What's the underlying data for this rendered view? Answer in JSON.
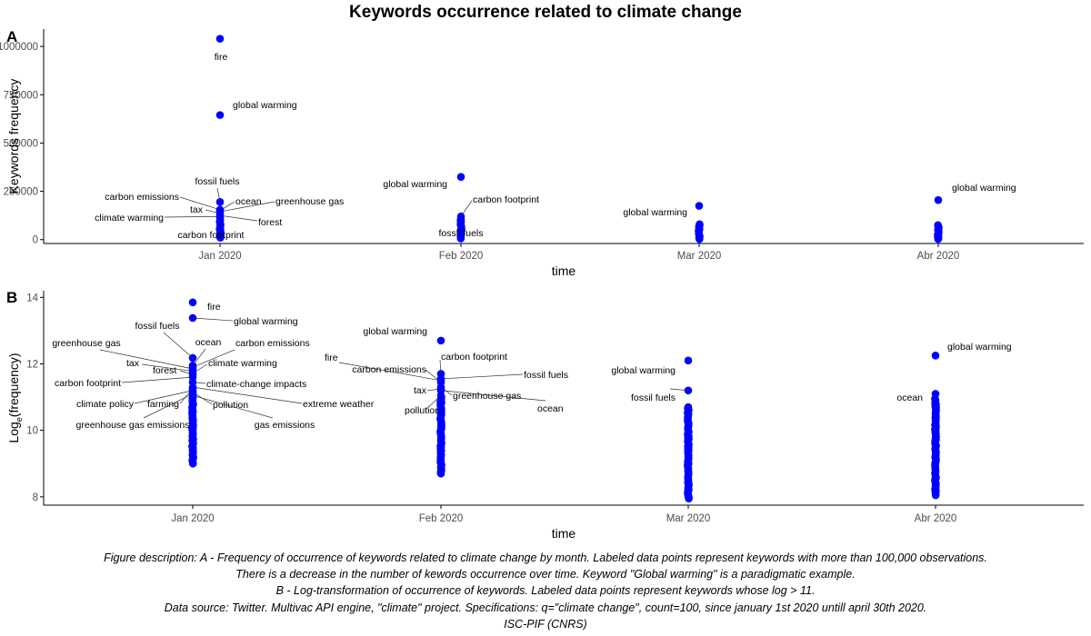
{
  "title": "Keywords occurrence related to climate change",
  "colors": {
    "point": "#0000ff",
    "axis": "#000000",
    "tick_text": "#4d4d4d",
    "leader": "#333333"
  },
  "chart_data": [
    {
      "panel": "A",
      "type": "scatter",
      "xlabel": "time",
      "ylabel": "Keywords frequency",
      "x_ticks": [
        "Jan 2020",
        "Feb 2020",
        "Mar 2020",
        "Abr 2020"
      ],
      "y_ticks": [
        0,
        250000,
        500000,
        750000,
        1000000
      ],
      "y_tick_labels": [
        "0",
        "250000",
        "500000",
        "750000",
        "1000000"
      ],
      "ylim": [
        -20000,
        1090000
      ],
      "grid": false,
      "labeled_points": [
        {
          "month": "Jan 2020",
          "keyword": "fire",
          "value": 1040000
        },
        {
          "month": "Jan 2020",
          "keyword": "global warming",
          "value": 645000
        },
        {
          "month": "Jan 2020",
          "keyword": "fossil fuels",
          "value": 195000
        },
        {
          "month": "Jan 2020",
          "keyword": "carbon emissions",
          "value": 155000
        },
        {
          "month": "Jan 2020",
          "keyword": "ocean",
          "value": 150000
        },
        {
          "month": "Jan 2020",
          "keyword": "greenhouse gas",
          "value": 145000
        },
        {
          "month": "Jan 2020",
          "keyword": "tax",
          "value": 135000
        },
        {
          "month": "Jan 2020",
          "keyword": "forest",
          "value": 125000
        },
        {
          "month": "Jan 2020",
          "keyword": "climate warming",
          "value": 120000
        },
        {
          "month": "Jan 2020",
          "keyword": "carbon footprint",
          "value": 112000
        },
        {
          "month": "Feb 2020",
          "keyword": "global warming",
          "value": 325000
        },
        {
          "month": "Feb 2020",
          "keyword": "carbon footprint",
          "value": 120000
        },
        {
          "month": "Feb 2020",
          "keyword": "fossil fuels",
          "value": 105000
        },
        {
          "month": "Mar 2020",
          "keyword": "global warming",
          "value": 175000
        },
        {
          "month": "Abr 2020",
          "keyword": "global warming",
          "value": 205000
        }
      ],
      "unlabeled_points": [
        {
          "month": "Jan 2020",
          "value_range": [
            10000,
            100000
          ]
        },
        {
          "month": "Feb 2020",
          "value_range": [
            6000,
            100000
          ]
        },
        {
          "month": "Mar 2020",
          "value_range": [
            3000,
            80000
          ]
        },
        {
          "month": "Abr 2020",
          "value_range": [
            3000,
            75000
          ]
        }
      ]
    },
    {
      "panel": "B",
      "type": "scatter",
      "xlabel": "time",
      "ylabel_main": "Log",
      "ylabel_sub": "e",
      "ylabel_rest": "(frequency)",
      "x_ticks": [
        "Jan 2020",
        "Feb 2020",
        "Mar 2020",
        "Abr 2020"
      ],
      "y_ticks": [
        8,
        10,
        12,
        14
      ],
      "y_tick_labels": [
        "8",
        "10",
        "12",
        "14"
      ],
      "ylim": [
        7.75,
        14.2
      ],
      "grid": false,
      "labeled_points": [
        {
          "month": "Jan 2020",
          "keyword": "fire",
          "value": 13.85
        },
        {
          "month": "Jan 2020",
          "keyword": "global warming",
          "value": 13.38
        },
        {
          "month": "Jan 2020",
          "keyword": "fossil fuels",
          "value": 12.18
        },
        {
          "month": "Jan 2020",
          "keyword": "ocean",
          "value": 11.95
        },
        {
          "month": "Jan 2020",
          "keyword": "carbon emissions",
          "value": 11.9
        },
        {
          "month": "Jan 2020",
          "keyword": "greenhouse gas",
          "value": 11.85
        },
        {
          "month": "Jan 2020",
          "keyword": "tax",
          "value": 11.78
        },
        {
          "month": "Jan 2020",
          "keyword": "climate warming",
          "value": 11.72
        },
        {
          "month": "Jan 2020",
          "keyword": "forest",
          "value": 11.68
        },
        {
          "month": "Jan 2020",
          "keyword": "carbon footprint",
          "value": 11.6
        },
        {
          "month": "Jan 2020",
          "keyword": "climate-change impacts",
          "value": 11.45
        },
        {
          "month": "Jan 2020",
          "keyword": "extreme weather",
          "value": 11.3
        },
        {
          "month": "Jan 2020",
          "keyword": "farming",
          "value": 11.25
        },
        {
          "month": "Jan 2020",
          "keyword": "climate policy",
          "value": 11.2
        },
        {
          "month": "Jan 2020",
          "keyword": "pollution",
          "value": 11.15
        },
        {
          "month": "Jan 2020",
          "keyword": "greenhouse gas emissions",
          "value": 11.1
        },
        {
          "month": "Jan 2020",
          "keyword": "gas emissions",
          "value": 11.05
        },
        {
          "month": "Feb 2020",
          "keyword": "global warming",
          "value": 12.7
        },
        {
          "month": "Feb 2020",
          "keyword": "carbon footprint",
          "value": 11.7
        },
        {
          "month": "Feb 2020",
          "keyword": "fossil fuels",
          "value": 11.55
        },
        {
          "month": "Feb 2020",
          "keyword": "fire",
          "value": 11.5
        },
        {
          "month": "Feb 2020",
          "keyword": "carbon emissions",
          "value": 11.45
        },
        {
          "month": "Feb 2020",
          "keyword": "greenhouse gas",
          "value": 11.3
        },
        {
          "month": "Feb 2020",
          "keyword": "tax",
          "value": 11.25
        },
        {
          "month": "Feb 2020",
          "keyword": "ocean",
          "value": 11.2
        },
        {
          "month": "Feb 2020",
          "keyword": "pollution",
          "value": 11.05
        },
        {
          "month": "Mar 2020",
          "keyword": "global warming",
          "value": 12.1
        },
        {
          "month": "Mar 2020",
          "keyword": "fossil fuels",
          "value": 11.2
        },
        {
          "month": "Abr 2020",
          "keyword": "global warming",
          "value": 12.25
        },
        {
          "month": "Abr 2020",
          "keyword": "ocean",
          "value": 11.1
        }
      ],
      "unlabeled_points": [
        {
          "month": "Jan 2020",
          "value_range": [
            9.0,
            11.0
          ]
        },
        {
          "month": "Feb 2020",
          "value_range": [
            8.7,
            11.0
          ]
        },
        {
          "month": "Mar 2020",
          "value_range": [
            7.95,
            10.7
          ]
        },
        {
          "month": "Abr 2020",
          "value_range": [
            8.05,
            10.95
          ]
        }
      ]
    }
  ],
  "caption": [
    "Figure description: A - Frequency of occurrence of keywords related to climate change by month. Labeled data points represent keywords with more than 100,000 observations.",
    "There is a decrease in the number of kewords occurrence over time. Keyword \"Global warming\" is a paradigmatic example.",
    "B - Log-transformation of occurrence of keywords. Labeled data points represent keywords whose log > 11.",
    "Data source: Twitter. Multivac API engine, \"climate\" project. Specifications: q=\"climate change\", count=100, since january 1st 2020 untill april 30th 2020.",
    "ISC-PIF (CNRS)"
  ]
}
